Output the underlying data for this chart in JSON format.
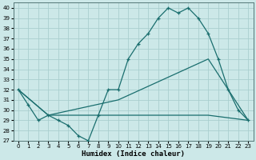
{
  "xlabel": "Humidex (Indice chaleur)",
  "bg_color": "#cce8e8",
  "grid_color": "#aacfcf",
  "line_color": "#1a6e6e",
  "xlim": [
    -0.5,
    23.5
  ],
  "ylim": [
    27,
    40.5
  ],
  "yticks": [
    27,
    28,
    29,
    30,
    31,
    32,
    33,
    34,
    35,
    36,
    37,
    38,
    39,
    40
  ],
  "xticks": [
    0,
    1,
    2,
    3,
    4,
    5,
    6,
    7,
    8,
    9,
    10,
    11,
    12,
    13,
    14,
    15,
    16,
    17,
    18,
    19,
    20,
    21,
    22,
    23
  ],
  "series1_x": [
    0,
    1,
    2,
    3,
    4,
    5,
    6,
    7,
    8,
    9,
    10,
    11,
    12,
    13,
    14,
    15,
    16,
    17,
    18,
    19,
    20,
    21,
    22,
    23
  ],
  "series1_y": [
    32,
    30.5,
    29,
    29.5,
    29,
    28.5,
    27.5,
    27,
    29.5,
    32,
    32,
    35,
    36.5,
    37.5,
    39,
    40,
    39.5,
    40,
    39,
    37.5,
    35,
    32,
    30,
    29
  ],
  "series2_x": [
    0,
    3,
    10,
    19,
    23
  ],
  "series2_y": [
    32,
    29.5,
    31,
    35,
    29
  ],
  "series3_x": [
    0,
    3,
    10,
    19,
    23
  ],
  "series3_y": [
    32,
    29.5,
    29.5,
    29.5,
    29
  ]
}
